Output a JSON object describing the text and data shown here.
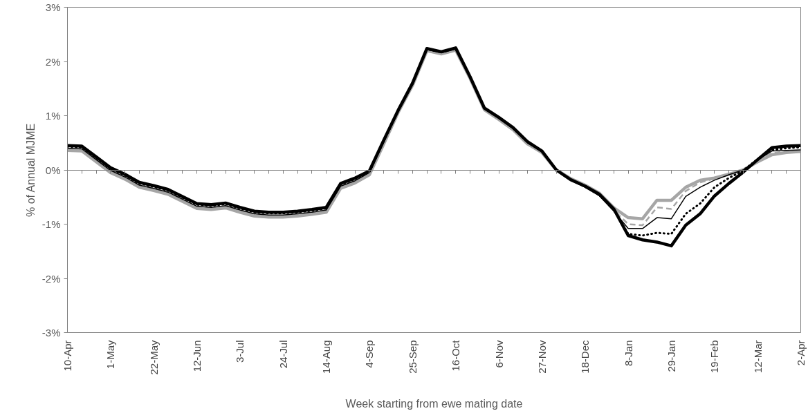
{
  "chart_data": {
    "type": "line",
    "xlabel": "Week starting from ewe mating date",
    "ylabel": "% of Annual MJME",
    "categories": [
      "10-Apr",
      null,
      null,
      "1-May",
      null,
      null,
      "22-May",
      null,
      null,
      "12-Jun",
      null,
      null,
      "3-Jul",
      null,
      null,
      "24-Jul",
      null,
      null,
      "14-Aug",
      null,
      null,
      "4-Sep",
      null,
      null,
      "25-Sep",
      null,
      null,
      "16-Oct",
      null,
      null,
      "6-Nov",
      null,
      null,
      "27-Nov",
      null,
      null,
      "18-Dec",
      null,
      null,
      "8-Jan",
      null,
      null,
      "29-Jan",
      null,
      null,
      "19-Feb",
      null,
      null,
      "12-Mar",
      null,
      null,
      "2-Apr"
    ],
    "ylim": [
      -3,
      3
    ],
    "yticks": [
      {
        "value": -3,
        "label": "-3%"
      },
      {
        "value": -2,
        "label": "-2%"
      },
      {
        "value": -1,
        "label": "-1%"
      },
      {
        "value": 0,
        "label": "0%"
      },
      {
        "value": 1,
        "label": "1%"
      },
      {
        "value": 2,
        "label": "2%"
      },
      {
        "value": 3,
        "label": "3%"
      }
    ],
    "series": [
      {
        "color": "#a6a6a6",
        "line_style": "solid",
        "values": [
          0.36,
          0.35,
          0.15,
          -0.05,
          -0.17,
          -0.32,
          -0.38,
          -0.45,
          -0.58,
          -0.71,
          -0.73,
          -0.7,
          -0.78,
          -0.85,
          -0.87,
          -0.87,
          -0.85,
          -0.82,
          -0.78,
          -0.34,
          -0.24,
          -0.09,
          0.48,
          1.06,
          1.56,
          2.2,
          2.14,
          2.21,
          1.69,
          1.11,
          0.93,
          0.74,
          0.48,
          0.32,
          0.0,
          -0.16,
          -0.28,
          -0.43,
          -0.7,
          -0.88,
          -0.9,
          -0.56,
          -0.56,
          -0.32,
          -0.19,
          -0.15,
          -0.08,
          0.0,
          0.15,
          0.28,
          0.32,
          0.34
        ]
      },
      {
        "color": "#a6a6a6",
        "line_style": "dashed",
        "values": [
          0.38,
          0.37,
          0.17,
          -0.03,
          -0.15,
          -0.3,
          -0.36,
          -0.43,
          -0.56,
          -0.69,
          -0.71,
          -0.68,
          -0.76,
          -0.83,
          -0.85,
          -0.85,
          -0.83,
          -0.8,
          -0.76,
          -0.32,
          -0.22,
          -0.07,
          0.5,
          1.07,
          1.57,
          2.21,
          2.15,
          2.22,
          1.7,
          1.12,
          0.94,
          0.75,
          0.49,
          0.33,
          0.0,
          -0.17,
          -0.3,
          -0.46,
          -0.74,
          -1.0,
          -1.02,
          -0.69,
          -0.72,
          -0.39,
          -0.23,
          -0.16,
          -0.08,
          0.0,
          0.16,
          0.31,
          0.34,
          0.35
        ]
      },
      {
        "color": "#000000",
        "line_style": "solid",
        "values": [
          0.4,
          0.39,
          0.19,
          -0.01,
          -0.13,
          -0.28,
          -0.34,
          -0.41,
          -0.54,
          -0.67,
          -0.69,
          -0.66,
          -0.74,
          -0.81,
          -0.83,
          -0.83,
          -0.81,
          -0.78,
          -0.74,
          -0.3,
          -0.2,
          -0.05,
          0.51,
          1.08,
          1.58,
          2.22,
          2.16,
          2.23,
          1.71,
          1.13,
          0.95,
          0.76,
          0.5,
          0.34,
          0.0,
          -0.19,
          -0.32,
          -0.48,
          -0.76,
          -1.08,
          -1.08,
          -0.88,
          -0.9,
          -0.49,
          -0.32,
          -0.19,
          -0.09,
          0.0,
          0.18,
          0.35,
          0.36,
          0.37
        ]
      },
      {
        "color": "#000000",
        "line_style": "dotted",
        "values": [
          0.43,
          0.42,
          0.22,
          0.02,
          -0.1,
          -0.25,
          -0.31,
          -0.38,
          -0.51,
          -0.64,
          -0.66,
          -0.63,
          -0.71,
          -0.78,
          -0.8,
          -0.8,
          -0.78,
          -0.75,
          -0.71,
          -0.27,
          -0.17,
          -0.03,
          0.53,
          1.09,
          1.59,
          2.23,
          2.17,
          2.24,
          1.72,
          1.14,
          0.96,
          0.77,
          0.51,
          0.35,
          0.0,
          -0.18,
          -0.31,
          -0.46,
          -0.74,
          -1.18,
          -1.21,
          -1.16,
          -1.18,
          -0.81,
          -0.62,
          -0.32,
          -0.15,
          -0.01,
          0.2,
          0.37,
          0.4,
          0.42
        ]
      },
      {
        "color": "#000000",
        "line_style": "solid",
        "values": [
          0.45,
          0.44,
          0.24,
          0.04,
          -0.08,
          -0.23,
          -0.29,
          -0.36,
          -0.49,
          -0.62,
          -0.64,
          -0.61,
          -0.69,
          -0.76,
          -0.78,
          -0.78,
          -0.76,
          -0.73,
          -0.69,
          -0.25,
          -0.15,
          -0.02,
          0.55,
          1.1,
          1.6,
          2.24,
          2.18,
          2.25,
          1.72,
          1.14,
          0.97,
          0.78,
          0.52,
          0.35,
          0.0,
          -0.18,
          -0.3,
          -0.45,
          -0.72,
          -1.21,
          -1.29,
          -1.33,
          -1.4,
          -1.02,
          -0.81,
          -0.48,
          -0.25,
          -0.04,
          0.19,
          0.41,
          0.44,
          0.45
        ]
      }
    ]
  }
}
